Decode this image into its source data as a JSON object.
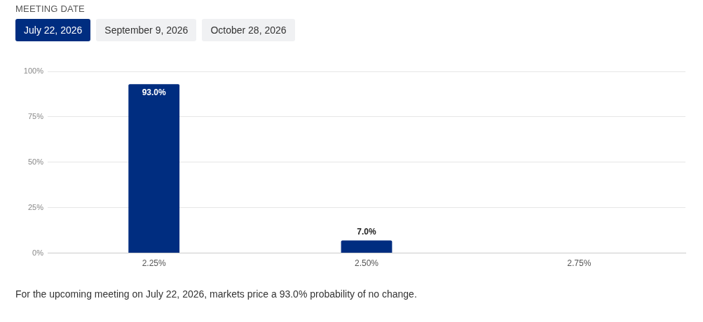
{
  "chart_data": {
    "type": "bar",
    "annotations": [
      "MEETING DATE",
      "July 22, 2026",
      "September 9, 2026",
      "October 28, 2026",
      "For the upcoming meeting on July 22, 2026, markets price a 93.0% probability of no change."
    ],
    "categories": [
      "2.25%",
      "2.50%",
      "2.75%"
    ],
    "values": [
      93,
      7,
      0
    ],
    "color": "#002d80",
    "value_labels": [
      "93.0%",
      "7.0%",
      null
    ],
    "ylim": [
      0,
      100
    ],
    "yticks": [
      {
        "value": 0,
        "label": "0%"
      },
      {
        "value": 25,
        "label": "25%"
      },
      {
        "value": 50,
        "label": "50%"
      },
      {
        "value": 75,
        "label": "75%"
      },
      {
        "value": 100,
        "label": "100%"
      }
    ],
    "grid": "y",
    "legend": false
  }
}
